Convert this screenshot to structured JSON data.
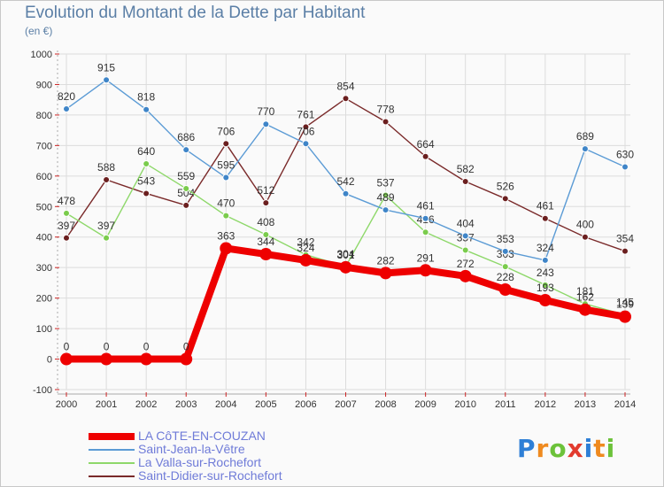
{
  "chart_data": {
    "type": "line",
    "title": "Evolution du Montant de la Dette par Habitant",
    "subtitle": "(en €)",
    "xlabel": "",
    "ylabel": "(en €)",
    "ylim": [
      -100,
      1000
    ],
    "yticks": [
      "-100",
      "0",
      "100",
      "200",
      "300",
      "400",
      "500",
      "600",
      "700",
      "800",
      "900",
      "1000"
    ],
    "categories": [
      "2000",
      "2001",
      "2002",
      "2003",
      "2004",
      "2005",
      "2006",
      "2007",
      "2008",
      "2009",
      "2010",
      "2011",
      "2012",
      "2013",
      "2014"
    ],
    "legend_position": "bottom-left",
    "series": [
      {
        "name": "Saint-Didier-sur-Rochefort",
        "color": "#7a2a2a",
        "marker": "#6b1f1f",
        "values": [
          397,
          588,
          543,
          504,
          706,
          512,
          761,
          854,
          778,
          664,
          582,
          526,
          461,
          400,
          354
        ]
      },
      {
        "name": "La Valla-sur-Rochefort",
        "color": "#8ed86a",
        "marker": "#7acc4c",
        "values": [
          478,
          397,
          640,
          559,
          470,
          408,
          342,
          304,
          537,
          416,
          357,
          303,
          243,
          181,
          145
        ]
      },
      {
        "name": "Saint-Jean-la-Vêtre",
        "color": "#5b9bd5",
        "marker": "#3f85c8",
        "values": [
          820,
          915,
          818,
          686,
          595,
          770,
          706,
          542,
          489,
          461,
          404,
          353,
          324,
          689,
          630
        ]
      },
      {
        "name": "LA CôTE-EN-COUZAN",
        "color": "#ee0000",
        "marker": "#ee0000",
        "values": [
          0,
          0,
          0,
          0,
          363,
          344,
          324,
          301,
          282,
          291,
          272,
          228,
          193,
          162,
          139
        ]
      }
    ],
    "legend_order": [
      "LA CôTE-EN-COUZAN",
      "Saint-Jean-la-Vêtre",
      "La Valla-sur-Rochefort",
      "Saint-Didier-sur-Rochefort"
    ]
  },
  "logo": {
    "letters": [
      "P",
      "r",
      "o",
      "x",
      "i",
      "t",
      "i"
    ],
    "colors": [
      "#2e7fd6",
      "#ef8a1f",
      "#6cc23a",
      "#e23b2e",
      "#2e7fd6",
      "#ef8a1f",
      "#6cc23a"
    ]
  }
}
